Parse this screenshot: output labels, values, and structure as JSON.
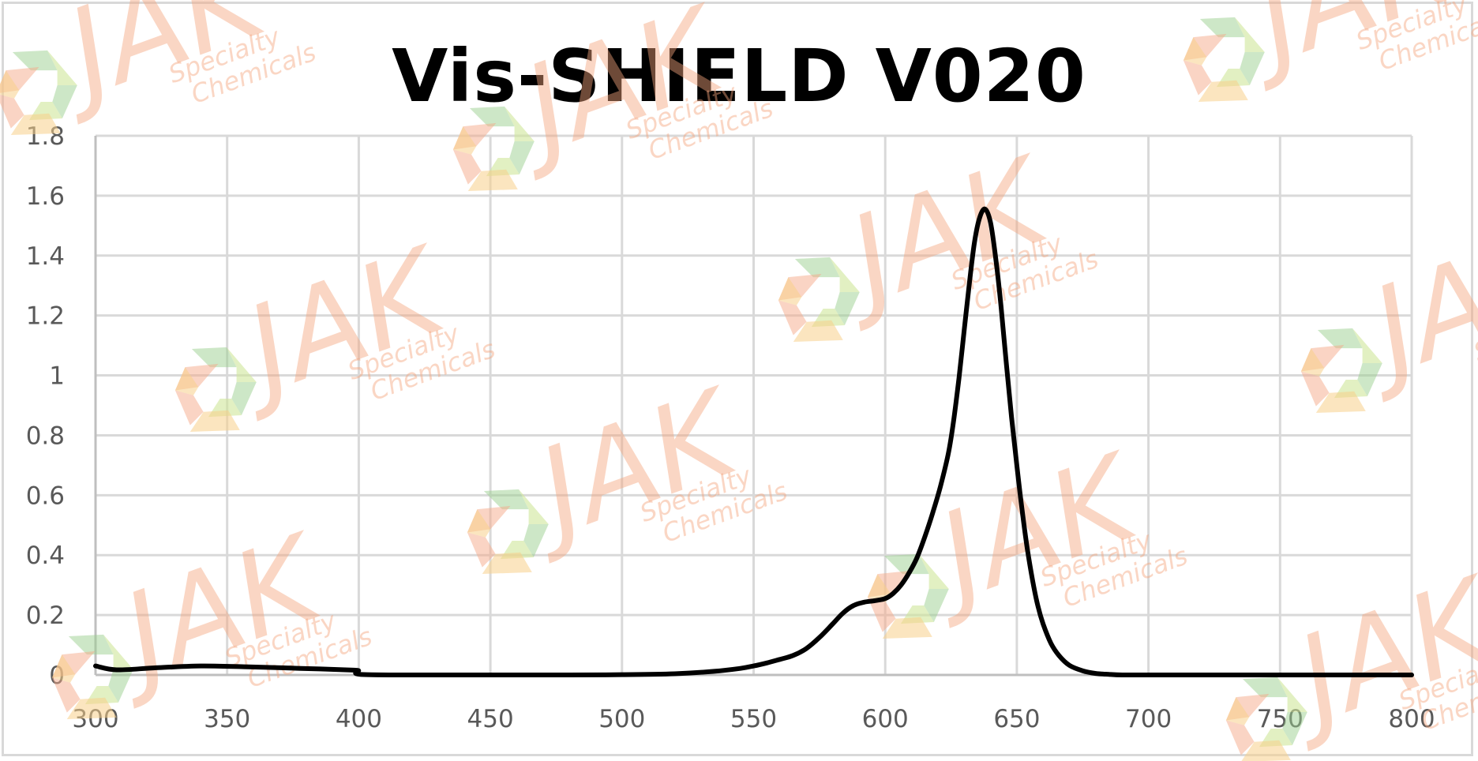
{
  "chart_data": {
    "type": "line",
    "title": "Vis-SHIELD V020",
    "xlabel": "",
    "ylabel": "",
    "xlim": [
      300,
      800
    ],
    "ylim": [
      0,
      1.8
    ],
    "x_ticks": [
      300,
      350,
      400,
      450,
      500,
      550,
      600,
      650,
      700,
      750,
      800
    ],
    "y_ticks": [
      0,
      0.2,
      0.4,
      0.6,
      0.8,
      1,
      1.2,
      1.4,
      1.6,
      1.8
    ],
    "x_tick_labels": [
      "300",
      "350",
      "400",
      "450",
      "500",
      "550",
      "600",
      "650",
      "700",
      "750",
      "800"
    ],
    "y_tick_labels": [
      "0",
      "0.2",
      "0.4",
      "0.6",
      "0.8",
      "1",
      "1.2",
      "1.4",
      "1.6",
      "1.8"
    ],
    "grid": true,
    "legend": null,
    "series": [
      {
        "name": "Vis-SHIELD V020",
        "color": "#000000",
        "x": [
          300,
          308,
          323,
          340,
          358,
          378,
          398,
          399.5,
          400.5,
          420,
          450,
          480,
          500,
          520,
          535,
          545,
          550,
          555,
          560,
          565,
          570,
          575,
          580,
          584,
          588,
          592,
          596,
          600,
          603,
          606,
          609,
          612,
          615,
          618,
          621,
          624,
          626,
          628,
          630,
          632,
          634,
          636,
          638,
          640,
          642,
          644,
          646,
          648,
          650,
          652,
          654,
          656,
          658,
          660,
          663,
          666,
          670,
          675,
          680,
          685,
          690,
          700,
          750,
          800
        ],
        "y": [
          0.03,
          0.017,
          0.024,
          0.03,
          0.027,
          0.022,
          0.016,
          0.012,
          0.002,
          0.0,
          0.0,
          0.0,
          0.001,
          0.004,
          0.012,
          0.022,
          0.03,
          0.04,
          0.052,
          0.065,
          0.088,
          0.125,
          0.17,
          0.207,
          0.232,
          0.243,
          0.248,
          0.255,
          0.272,
          0.3,
          0.34,
          0.39,
          0.46,
          0.54,
          0.63,
          0.74,
          0.85,
          0.99,
          1.15,
          1.31,
          1.45,
          1.53,
          1.555,
          1.51,
          1.39,
          1.23,
          1.04,
          0.86,
          0.7,
          0.55,
          0.42,
          0.315,
          0.23,
          0.17,
          0.105,
          0.065,
          0.032,
          0.014,
          0.005,
          0.002,
          0.0,
          0.0,
          0.0,
          0.0
        ]
      }
    ],
    "annotations": [
      {
        "type": "peak",
        "x": 638,
        "y": 1.555
      },
      {
        "type": "shoulder",
        "x": 595,
        "y": 0.25
      }
    ]
  },
  "watermark": {
    "brand": "JAK",
    "subtitle_line1": "Specialty",
    "subtitle_line2": "Chemicals",
    "colors": {
      "text": "#f3a57c",
      "logo_green": "#9ccf8f",
      "logo_lime": "#cfe69a",
      "logo_orange": "#f6a98a",
      "logo_yellow": "#f8cf8a"
    }
  },
  "colors": {
    "line": "#000000",
    "grid": "#d9d9d9",
    "axis": "#bfbfbf",
    "tick_text": "#595959",
    "title": "#000000",
    "background": "#ffffff"
  }
}
